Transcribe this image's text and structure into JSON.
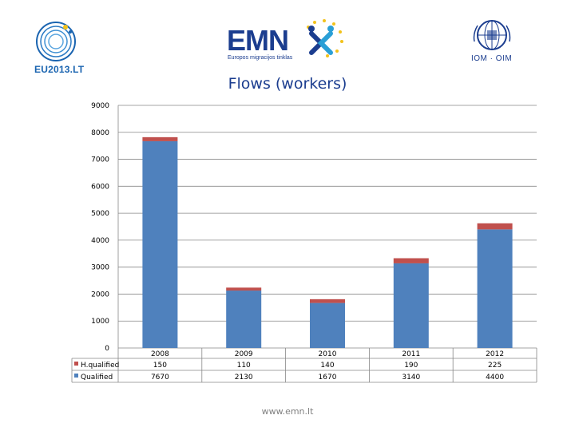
{
  "logos": {
    "eu_text": "EU2013.LT",
    "emn_word": "EMN",
    "emn_subtitle": "Europos migracijos tinklas",
    "iom_text": "IOM · OIM"
  },
  "colors": {
    "hq_qualified": "#c0504d",
    "qualified": "#4f81bd",
    "title": "#1b3d8f"
  },
  "chart_data": {
    "type": "bar",
    "stacked": true,
    "title": "Flows (workers)",
    "categories": [
      "2008",
      "2009",
      "2010",
      "2011",
      "2012"
    ],
    "series": [
      {
        "name": "Qualified",
        "values": [
          7670,
          2130,
          1670,
          3140,
          4400
        ]
      },
      {
        "name": "H.qualified",
        "values": [
          150,
          110,
          140,
          190,
          225
        ]
      }
    ],
    "ylim": [
      0,
      9000
    ],
    "yticks": [
      "0",
      "1000",
      "2000",
      "3000",
      "4000",
      "5000",
      "6000",
      "7000",
      "8000",
      "9000"
    ],
    "grid": true,
    "legend": "data table"
  },
  "footer": {
    "url": "www.emn.lt"
  }
}
